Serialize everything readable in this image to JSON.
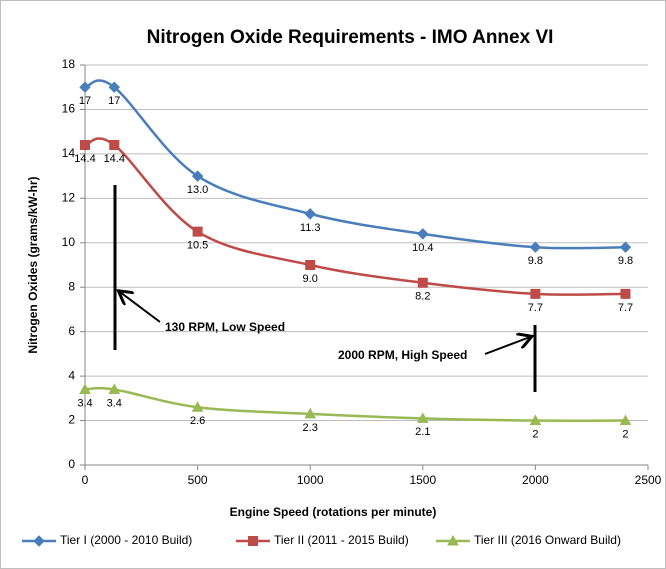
{
  "chart_data": {
    "type": "line",
    "title": "Nitrogen Oxide Requirements - IMO Annex VI",
    "x_label": "Engine Speed (rotations per minute)",
    "y_label": "Nitrogen Oxides (grams/kW-hr)",
    "x": [
      0,
      130,
      500,
      1000,
      1500,
      2000,
      2400
    ],
    "series": [
      {
        "name": "Tier I (2000 - 2010 Build)",
        "color": "#4a7ebb",
        "marker": "diamond",
        "values": [
          17,
          17,
          13,
          11.3,
          10.4,
          9.8,
          9.8
        ],
        "value_labels": [
          "17",
          "17",
          "13.0",
          "11.3",
          "10.4",
          "9.8",
          "9.8"
        ]
      },
      {
        "name": "Tier II (2011 - 2015 Build)",
        "color": "#be4b48",
        "marker": "square",
        "values": [
          14.4,
          14.4,
          10.5,
          9,
          8.2,
          7.7,
          7.7
        ],
        "value_labels": [
          "14.4",
          "14.4",
          "10.5",
          "9.0",
          "8.2",
          "7.7",
          "7.7"
        ]
      },
      {
        "name": "Tier III (2016 Onward Build)",
        "color": "#98b954",
        "marker": "triangle",
        "values": [
          3.4,
          3.4,
          2.6,
          2.3,
          2.1,
          2,
          2
        ],
        "value_labels": [
          "3.4",
          "3.4",
          "2.6",
          "2.3",
          "2.1",
          "2",
          "2"
        ]
      }
    ],
    "annotations": [
      "130 RPM, Low Speed",
      "2000 RPM, High Speed"
    ],
    "xlim": [
      0,
      2500
    ],
    "xticks": [
      0,
      500,
      1000,
      1500,
      2000,
      2500
    ],
    "ylim": [
      0,
      18
    ],
    "yticks": [
      0,
      2,
      4,
      6,
      8,
      10,
      12,
      14,
      16,
      18
    ],
    "grid": true,
    "legend": "bottom"
  }
}
